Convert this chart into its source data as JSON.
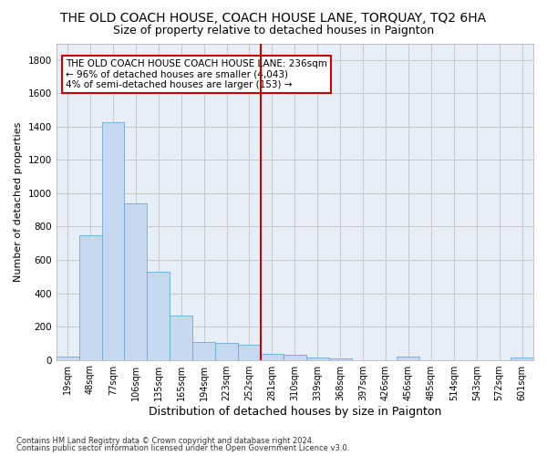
{
  "title": "THE OLD COACH HOUSE, COACH HOUSE LANE, TORQUAY, TQ2 6HA",
  "subtitle": "Size of property relative to detached houses in Paignton",
  "xlabel": "Distribution of detached houses by size in Paignton",
  "ylabel": "Number of detached properties",
  "footnote1": "Contains HM Land Registry data © Crown copyright and database right 2024.",
  "footnote2": "Contains public sector information licensed under the Open Government Licence v3.0.",
  "bar_labels": [
    "19sqm",
    "48sqm",
    "77sqm",
    "106sqm",
    "135sqm",
    "165sqm",
    "194sqm",
    "223sqm",
    "252sqm",
    "281sqm",
    "310sqm",
    "339sqm",
    "368sqm",
    "397sqm",
    "426sqm",
    "456sqm",
    "485sqm",
    "514sqm",
    "543sqm",
    "572sqm",
    "601sqm"
  ],
  "bar_values": [
    22,
    745,
    1425,
    940,
    530,
    265,
    105,
    100,
    90,
    38,
    28,
    15,
    8,
    0,
    0,
    18,
    0,
    0,
    0,
    0,
    12
  ],
  "bar_color": "#c5d8f0",
  "bar_edgecolor": "#6aaad4",
  "vline_x": 8.5,
  "vline_color": "#cc0000",
  "annotation_text": "THE OLD COACH HOUSE COACH HOUSE LANE: 236sqm\n← 96% of detached houses are smaller (4,043)\n4% of semi-detached houses are larger (153) →",
  "annotation_box_edgecolor": "#cc0000",
  "ylim": [
    0,
    1900
  ],
  "yticks": [
    0,
    200,
    400,
    600,
    800,
    1000,
    1200,
    1400,
    1600,
    1800
  ],
  "background_color": "#e8eef8",
  "grid_color": "#c8c8c8",
  "title_fontsize": 10,
  "subtitle_fontsize": 9,
  "xlabel_fontsize": 9,
  "ylabel_fontsize": 8,
  "tick_fontsize": 7,
  "annotation_fontsize": 7.5
}
